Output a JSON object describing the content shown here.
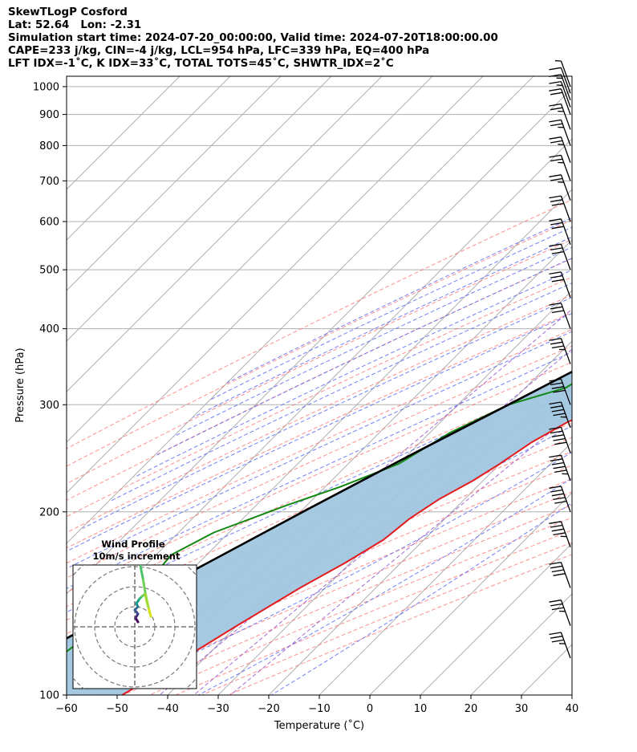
{
  "header": {
    "line1": "SkewTLogP Cosford",
    "line2": "Lat: 52.64   Lon: -2.31",
    "line3": "Simulation start time: 2024-07-20_00:00:00, Valid time: 2024-07-20T18:00:00.00",
    "line4": "CAPE=233 j/kg, CIN=-4 j/kg, LCL=954 hPa, LFC=339 hPa, EQ=400 hPa",
    "line5": "LFT IDX=-1˚C, K IDX=33˚C, TOTAL TOTS=45˚C, SHWTR_IDX=2˚C"
  },
  "chart_data": {
    "type": "skewt",
    "xlabel": "Temperature (˚C)",
    "ylabel": "Pressure (hPa)",
    "xlim": [
      -60,
      40
    ],
    "ylim": [
      1040,
      100
    ],
    "x_ticks": [
      "−60",
      "−50",
      "−40",
      "−30",
      "−20",
      "−10",
      "0",
      "10",
      "20",
      "30",
      "40"
    ],
    "y_ticks": [
      "100",
      "200",
      "300",
      "400",
      "500",
      "600",
      "700",
      "800",
      "900",
      "1000"
    ],
    "temperature_profile": [
      [
        1000,
        21
      ],
      [
        975,
        19
      ],
      [
        950,
        18.5
      ],
      [
        900,
        17
      ],
      [
        850,
        15.5
      ],
      [
        800,
        14
      ],
      [
        750,
        12.5
      ],
      [
        700,
        11
      ],
      [
        650,
        9.5
      ],
      [
        600,
        8
      ],
      [
        550,
        7
      ],
      [
        500,
        5.5
      ],
      [
        450,
        3.5
      ],
      [
        400,
        1
      ],
      [
        350,
        -3
      ],
      [
        320,
        -7
      ],
      [
        300,
        -11
      ],
      [
        280,
        -15
      ],
      [
        260,
        -18
      ],
      [
        240,
        -20
      ],
      [
        225,
        -22
      ],
      [
        210,
        -25
      ],
      [
        195,
        -27
      ],
      [
        180,
        -28
      ],
      [
        165,
        -31
      ],
      [
        150,
        -35
      ],
      [
        130,
        -40
      ],
      [
        115,
        -44
      ],
      [
        100,
        -49
      ]
    ],
    "dewpoint_profile": [
      [
        1000,
        19
      ],
      [
        975,
        19
      ],
      [
        950,
        18
      ],
      [
        900,
        15
      ],
      [
        850,
        13
      ],
      [
        800,
        11.5
      ],
      [
        750,
        9.5
      ],
      [
        700,
        8
      ],
      [
        650,
        6.5
      ],
      [
        600,
        5.5
      ],
      [
        550,
        4
      ],
      [
        500,
        2
      ],
      [
        450,
        -1
      ],
      [
        400,
        -4
      ],
      [
        380,
        -10
      ],
      [
        355,
        -22
      ],
      [
        340,
        -20
      ],
      [
        320,
        -22
      ],
      [
        300,
        -30
      ],
      [
        270,
        -36
      ],
      [
        240,
        -40
      ],
      [
        220,
        -47
      ],
      [
        205,
        -54
      ],
      [
        185,
        -63
      ],
      [
        170,
        -67
      ],
      [
        150,
        -66
      ],
      [
        130,
        -67
      ],
      [
        115,
        -69
      ],
      [
        100,
        -71
      ]
    ],
    "parcel_profile": [
      [
        1000,
        21
      ],
      [
        975,
        19
      ],
      [
        950,
        18.5
      ],
      [
        900,
        16.8
      ],
      [
        850,
        14.8
      ],
      [
        800,
        12.6
      ],
      [
        750,
        10.2
      ],
      [
        700,
        7.5
      ],
      [
        650,
        4.7
      ],
      [
        600,
        1.5
      ],
      [
        550,
        -2
      ],
      [
        500,
        -6
      ],
      [
        450,
        -10.5
      ],
      [
        400,
        -16
      ],
      [
        350,
        -22.5
      ],
      [
        300,
        -30
      ],
      [
        250,
        -39
      ],
      [
        200,
        -49.5
      ],
      [
        150,
        -62.5
      ],
      [
        100,
        -81
      ]
    ],
    "shading": {
      "cape_color": "#f4a6a6",
      "cin_color": "#a1c6e0"
    },
    "wind_barbs_kt": [
      [
        1000,
        5
      ],
      [
        975,
        10
      ],
      [
        950,
        15
      ],
      [
        925,
        15
      ],
      [
        900,
        20
      ],
      [
        850,
        25
      ],
      [
        800,
        25
      ],
      [
        750,
        25
      ],
      [
        700,
        25
      ],
      [
        650,
        25
      ],
      [
        600,
        30
      ],
      [
        550,
        30
      ],
      [
        500,
        30
      ],
      [
        450,
        30
      ],
      [
        400,
        30
      ],
      [
        350,
        35
      ],
      [
        300,
        40
      ],
      [
        275,
        45
      ],
      [
        250,
        50
      ],
      [
        225,
        55
      ],
      [
        200,
        50
      ],
      [
        175,
        45
      ],
      [
        150,
        40
      ],
      [
        130,
        35
      ],
      [
        115,
        35
      ]
    ],
    "hodograph": {
      "title": "Wind Profile",
      "subtitle": "10m/s increment"
    },
    "colors": {
      "temperature": "#e31a1c",
      "dewpoint": "#118811",
      "parcel": "#000000",
      "isotherm": "#b0b0b0",
      "dry_adiabat": "#ff6b6b",
      "moist_adiabat": "#5b6bf5",
      "mixing_ratio": "#9b59d0"
    }
  }
}
